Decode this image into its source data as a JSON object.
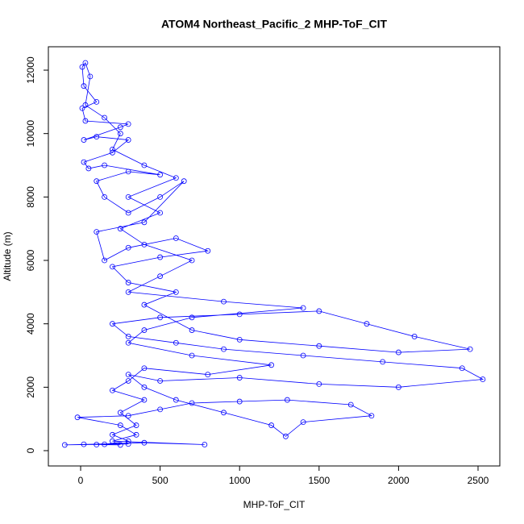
{
  "chart_data": {
    "type": "line",
    "title": "ATOM4 Northeast_Pacific_2 MHP-ToF_CIT",
    "xlabel": "MHP-ToF_CIT",
    "ylabel": "Altitude (m)",
    "color": "#0000ff",
    "markers": true,
    "xlim": [
      -203,
      2637
    ],
    "ylim": [
      -483,
      12738
    ],
    "xticks": [
      0,
      500,
      1000,
      1500,
      2000,
      2500
    ],
    "yticks": [
      0,
      2000,
      4000,
      6000,
      8000,
      10000,
      12000
    ],
    "x": [
      250,
      100,
      20,
      300,
      -100,
      400,
      780,
      200,
      350,
      250,
      -20,
      300,
      500,
      700,
      1000,
      1300,
      1700,
      1830,
      1400,
      1290,
      1200,
      900,
      600,
      400,
      300,
      500,
      1000,
      1500,
      2000,
      2530,
      2400,
      1900,
      1400,
      900,
      600,
      300,
      200,
      500,
      1000,
      1500,
      1800,
      2100,
      2450,
      2000,
      1500,
      1000,
      700,
      400,
      600,
      300,
      200,
      500,
      800,
      600,
      300,
      150,
      100,
      400,
      650,
      500,
      300,
      150,
      100,
      300,
      500,
      150,
      50,
      20,
      200,
      300,
      100,
      20,
      250,
      300,
      30,
      10,
      100,
      20,
      10,
      30,
      60,
      30,
      150,
      250,
      200,
      400,
      600,
      300,
      500,
      250,
      400,
      700,
      500,
      300,
      900,
      1400,
      700,
      400,
      300,
      700,
      1200,
      800,
      400,
      300,
      200,
      400,
      250,
      350,
      200,
      300,
      150
    ],
    "values": [
      180,
      190,
      200,
      210,
      180,
      250,
      190,
      300,
      500,
      800,
      1050,
      1100,
      1300,
      1500,
      1550,
      1600,
      1450,
      1100,
      900,
      450,
      800,
      1200,
      1600,
      2000,
      2400,
      2200,
      2300,
      2100,
      2000,
      2250,
      2600,
      2800,
      3000,
      3200,
      3400,
      3600,
      4000,
      4200,
      4300,
      4400,
      4000,
      3600,
      3200,
      3100,
      3300,
      3500,
      3800,
      4600,
      5000,
      5300,
      5800,
      6100,
      6300,
      6700,
      6400,
      6000,
      6900,
      7200,
      8500,
      8000,
      7500,
      8000,
      8500,
      8800,
      8700,
      9000,
      8900,
      9100,
      9400,
      9800,
      9900,
      9800,
      10200,
      10300,
      10400,
      10800,
      11000,
      11500,
      12100,
      12230,
      11800,
      10900,
      10500,
      10000,
      9500,
      9000,
      8600,
      8000,
      7500,
      7000,
      6500,
      6000,
      5500,
      5000,
      4700,
      4500,
      4200,
      3800,
      3400,
      3000,
      2700,
      2400,
      2600,
      2200,
      1900,
      1600,
      1200,
      800,
      500,
      300,
      200
    ]
  }
}
